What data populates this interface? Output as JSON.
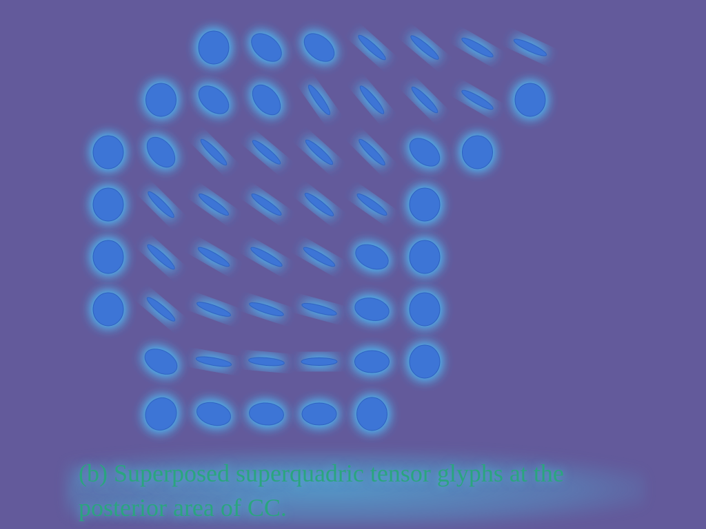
{
  "figure": {
    "caption_label": "(b)",
    "caption_text": "Superposed superquadric tensor glyphs at the posterior area of CC.",
    "colors": {
      "background": "#635a9b",
      "glyph_fill": "#3d74d6",
      "glyph_glow": "#4cc3ff",
      "caption_text": "#2aa57e"
    },
    "glyph_rows": [
      {
        "row": 1,
        "glyphs": [
          {
            "col": 3,
            "shape": "round",
            "angle_deg": 0
          },
          {
            "col": 4,
            "shape": "blob",
            "angle_deg": 40
          },
          {
            "col": 5,
            "shape": "blob",
            "angle_deg": 40
          },
          {
            "col": 6,
            "shape": "thin",
            "angle_deg": 42
          },
          {
            "col": 7,
            "shape": "thin",
            "angle_deg": 40
          },
          {
            "col": 8,
            "shape": "thin",
            "angle_deg": 30
          },
          {
            "col": 9,
            "shape": "thin",
            "angle_deg": 25
          }
        ]
      },
      {
        "row": 2,
        "glyphs": [
          {
            "col": 2,
            "shape": "round",
            "angle_deg": 0
          },
          {
            "col": 3,
            "shape": "blob",
            "angle_deg": 40
          },
          {
            "col": 4,
            "shape": "blob",
            "angle_deg": 50
          },
          {
            "col": 5,
            "shape": "thin",
            "angle_deg": 55
          },
          {
            "col": 6,
            "shape": "thin",
            "angle_deg": 50
          },
          {
            "col": 7,
            "shape": "thin",
            "angle_deg": 45
          },
          {
            "col": 8,
            "shape": "thin",
            "angle_deg": 30
          },
          {
            "col": 9,
            "shape": "round",
            "angle_deg": 0
          }
        ]
      },
      {
        "row": 3,
        "glyphs": [
          {
            "col": 1,
            "shape": "round",
            "angle_deg": 0
          },
          {
            "col": 2,
            "shape": "blob",
            "angle_deg": 50
          },
          {
            "col": 3,
            "shape": "thin",
            "angle_deg": 45
          },
          {
            "col": 4,
            "shape": "thin",
            "angle_deg": 40
          },
          {
            "col": 5,
            "shape": "thin",
            "angle_deg": 42
          },
          {
            "col": 6,
            "shape": "thin",
            "angle_deg": 45
          },
          {
            "col": 7,
            "shape": "blob",
            "angle_deg": 40
          },
          {
            "col": 8,
            "shape": "round",
            "angle_deg": 0
          }
        ]
      },
      {
        "row": 4,
        "glyphs": [
          {
            "col": 1,
            "shape": "round",
            "angle_deg": 0
          },
          {
            "col": 2,
            "shape": "thin",
            "angle_deg": 45
          },
          {
            "col": 3,
            "shape": "thin",
            "angle_deg": 35
          },
          {
            "col": 4,
            "shape": "thin",
            "angle_deg": 35
          },
          {
            "col": 5,
            "shape": "thin",
            "angle_deg": 38
          },
          {
            "col": 6,
            "shape": "thin",
            "angle_deg": 35
          },
          {
            "col": 7,
            "shape": "round",
            "angle_deg": 0
          }
        ]
      },
      {
        "row": 5,
        "glyphs": [
          {
            "col": 1,
            "shape": "round",
            "angle_deg": 0
          },
          {
            "col": 2,
            "shape": "thin",
            "angle_deg": 42
          },
          {
            "col": 3,
            "shape": "thin",
            "angle_deg": 30
          },
          {
            "col": 4,
            "shape": "thin",
            "angle_deg": 30
          },
          {
            "col": 5,
            "shape": "thin",
            "angle_deg": 30
          },
          {
            "col": 6,
            "shape": "blob",
            "angle_deg": 25
          },
          {
            "col": 7,
            "shape": "round",
            "angle_deg": 0
          }
        ]
      },
      {
        "row": 6,
        "glyphs": [
          {
            "col": 1,
            "shape": "round",
            "angle_deg": 0
          },
          {
            "col": 2,
            "shape": "thin",
            "angle_deg": 40
          },
          {
            "col": 3,
            "shape": "thin",
            "angle_deg": 20
          },
          {
            "col": 4,
            "shape": "thin",
            "angle_deg": 18
          },
          {
            "col": 5,
            "shape": "thin",
            "angle_deg": 15
          },
          {
            "col": 6,
            "shape": "blob",
            "angle_deg": 12
          },
          {
            "col": 7,
            "shape": "round",
            "angle_deg": 0
          }
        ]
      },
      {
        "row": 7,
        "glyphs": [
          {
            "col": 2,
            "shape": "blob",
            "angle_deg": 28
          },
          {
            "col": 3,
            "shape": "thin",
            "angle_deg": 10
          },
          {
            "col": 4,
            "shape": "thin",
            "angle_deg": 5
          },
          {
            "col": 5,
            "shape": "thin",
            "angle_deg": 0
          },
          {
            "col": 6,
            "shape": "blob",
            "angle_deg": 0
          },
          {
            "col": 7,
            "shape": "round",
            "angle_deg": 0
          }
        ]
      },
      {
        "row": 8,
        "glyphs": [
          {
            "col": 2,
            "shape": "round",
            "angle_deg": 30
          },
          {
            "col": 3,
            "shape": "blob",
            "angle_deg": 15
          },
          {
            "col": 4,
            "shape": "blob",
            "angle_deg": 5
          },
          {
            "col": 5,
            "shape": "blob",
            "angle_deg": 0
          },
          {
            "col": 6,
            "shape": "round",
            "angle_deg": 0
          }
        ]
      }
    ]
  }
}
